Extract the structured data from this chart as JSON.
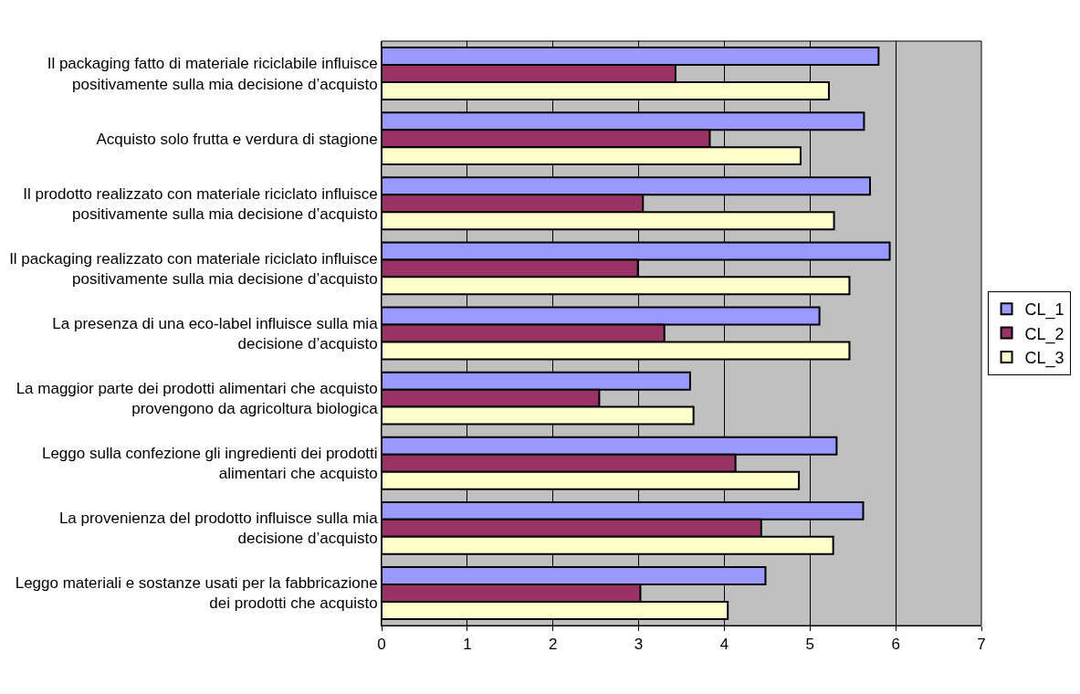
{
  "chart_data": {
    "type": "bar",
    "orientation": "horizontal",
    "categories": [
      "Il packaging fatto di materiale riciclabile influisce\npositivamente sulla mia decisione d’acquisto",
      "Acquisto solo frutta e verdura di stagione",
      "Il prodotto realizzato con materiale riciclato influisce\npositivamente sulla mia decisione d’acquisto",
      "Il packaging realizzato con materiale riciclato influisce\npositivamente sulla mia decisione d’acquisto",
      "La presenza di una eco-label influisce sulla mia\ndecisione d’acquisto",
      "La maggior parte dei prodotti alimentari che acquisto\nprovengono da agricoltura biologica",
      "Leggo sulla confezione gli ingredienti dei prodotti\nalimentari che acquisto",
      "La provenienza del prodotto influisce sulla mia\ndecisione d’acquisto",
      "Leggo materiali e sostanze usati per la fabbricazione\ndei prodotti che acquisto"
    ],
    "series": [
      {
        "name": "CL_1",
        "color": "#9999ff",
        "values": [
          5.8,
          5.63,
          5.7,
          5.93,
          5.11,
          3.6,
          5.31,
          5.62,
          4.48
        ]
      },
      {
        "name": "CL_2",
        "color": "#993366",
        "values": [
          3.43,
          3.83,
          3.05,
          2.99,
          3.3,
          2.54,
          4.13,
          4.43,
          3.02
        ]
      },
      {
        "name": "CL_3",
        "color": "#ffffcc",
        "values": [
          5.22,
          4.89,
          5.28,
          5.46,
          5.46,
          3.64,
          4.87,
          5.27,
          4.04
        ]
      }
    ],
    "xlim": [
      0,
      7
    ],
    "xticks": [
      0,
      1,
      2,
      3,
      4,
      5,
      6,
      7
    ],
    "grid": "x",
    "legend": "right"
  }
}
